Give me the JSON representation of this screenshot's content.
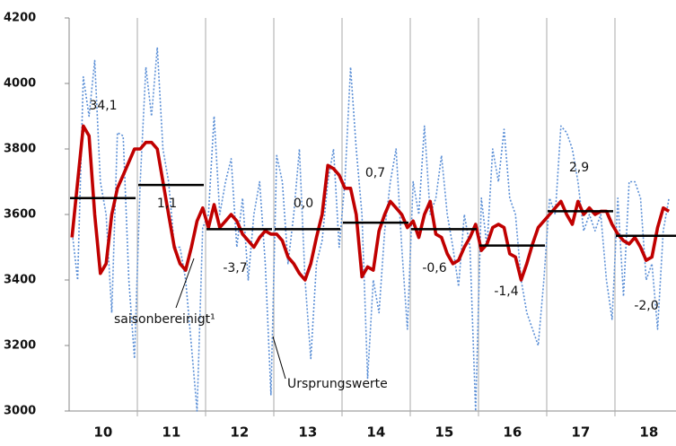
{
  "chart_data": {
    "type": "line",
    "categories": [
      null,
      null,
      null,
      null,
      null,
      "10",
      null,
      null,
      null,
      null,
      null,
      null,
      null,
      null,
      null,
      null,
      null,
      "11",
      null,
      null,
      null,
      null,
      null,
      null,
      null,
      null,
      null,
      null,
      null,
      "12",
      null,
      null,
      null,
      null,
      null,
      null,
      null,
      null,
      null,
      null,
      null,
      "13",
      null,
      null,
      null,
      null,
      null,
      null,
      null,
      null,
      null,
      null,
      null,
      "14",
      null,
      null,
      null,
      null,
      null,
      null,
      null,
      null,
      null,
      null,
      null,
      "15",
      null,
      null,
      null,
      null,
      null,
      null,
      null,
      null,
      null,
      null,
      null,
      "16",
      null,
      null,
      null,
      null,
      null,
      null,
      null,
      null,
      null,
      null,
      null,
      "17",
      null,
      null,
      null,
      null,
      null,
      null,
      null,
      null,
      null,
      null,
      null,
      "18",
      null,
      null,
      null,
      null,
      null,
      null
    ],
    "series": [
      {
        "name": "Ursprungswerte",
        "color": "#5b8fd6",
        "line_style": "dotted",
        "values": [
          3550,
          3400,
          4020,
          3900,
          4070,
          3700,
          3600,
          3300,
          3850,
          3840,
          3400,
          3160,
          3700,
          4050,
          3900,
          4110,
          3800,
          3700,
          3500,
          3500,
          3400,
          3200,
          3000,
          3560,
          3600,
          3900,
          3600,
          3700,
          3770,
          3500,
          3650,
          3400,
          3600,
          3700,
          3450,
          3050,
          3780,
          3700,
          3450,
          3600,
          3800,
          3400,
          3160,
          3450,
          3520,
          3700,
          3800,
          3500,
          3700,
          4050,
          3800,
          3600,
          3100,
          3400,
          3300,
          3550,
          3700,
          3800,
          3500,
          3250,
          3700,
          3600,
          3870,
          3600,
          3650,
          3780,
          3600,
          3500,
          3380,
          3600,
          3500,
          3000,
          3650,
          3500,
          3800,
          3700,
          3860,
          3650,
          3600,
          3400,
          3300,
          3250,
          3200,
          3400,
          3650,
          3600,
          3870,
          3850,
          3800,
          3700,
          3550,
          3600,
          3550,
          3600,
          3400,
          3280,
          3650,
          3350,
          3700,
          3700,
          3650,
          3400,
          3450,
          3250,
          3550,
          3650,
          null,
          null
        ]
      },
      {
        "name": "saisonbereinigt¹",
        "color": "#c00000",
        "line_style": "solid",
        "values": [
          3530,
          3700,
          3870,
          3840,
          3600,
          3420,
          3450,
          3600,
          3680,
          3720,
          3760,
          3800,
          3800,
          3820,
          3820,
          3800,
          3700,
          3600,
          3500,
          3450,
          3430,
          3500,
          3580,
          3620,
          3560,
          3630,
          3560,
          3580,
          3600,
          3580,
          3540,
          3520,
          3500,
          3530,
          3550,
          3540,
          3540,
          3520,
          3470,
          3450,
          3420,
          3400,
          3450,
          3530,
          3600,
          3750,
          3740,
          3720,
          3680,
          3680,
          3600,
          3410,
          3440,
          3430,
          3550,
          3600,
          3640,
          3620,
          3600,
          3560,
          3580,
          3530,
          3600,
          3640,
          3540,
          3530,
          3480,
          3450,
          3460,
          3500,
          3530,
          3570,
          3490,
          3510,
          3560,
          3570,
          3560,
          3480,
          3470,
          3400,
          3450,
          3510,
          3560,
          3580,
          3600,
          3620,
          3640,
          3600,
          3570,
          3640,
          3600,
          3620,
          3600,
          3610,
          3610,
          3570,
          3540,
          3520,
          3510,
          3530,
          3500,
          3460,
          3470,
          3560,
          3620,
          3610,
          null,
          null
        ]
      }
    ],
    "annual_averages": [
      3650,
      3690,
      3555,
      3555,
      3575,
      3555,
      3505,
      3610,
      3535
    ],
    "annual_change_labels": [
      "34,1",
      "1,1",
      "-3,7",
      "0,0",
      "0,7",
      "-0,6",
      "-1,4",
      "2,9",
      "-2,0"
    ],
    "ylim": [
      3000,
      4200
    ],
    "yticks": [
      3000,
      3200,
      3400,
      3600,
      3800,
      4000,
      4200
    ]
  }
}
